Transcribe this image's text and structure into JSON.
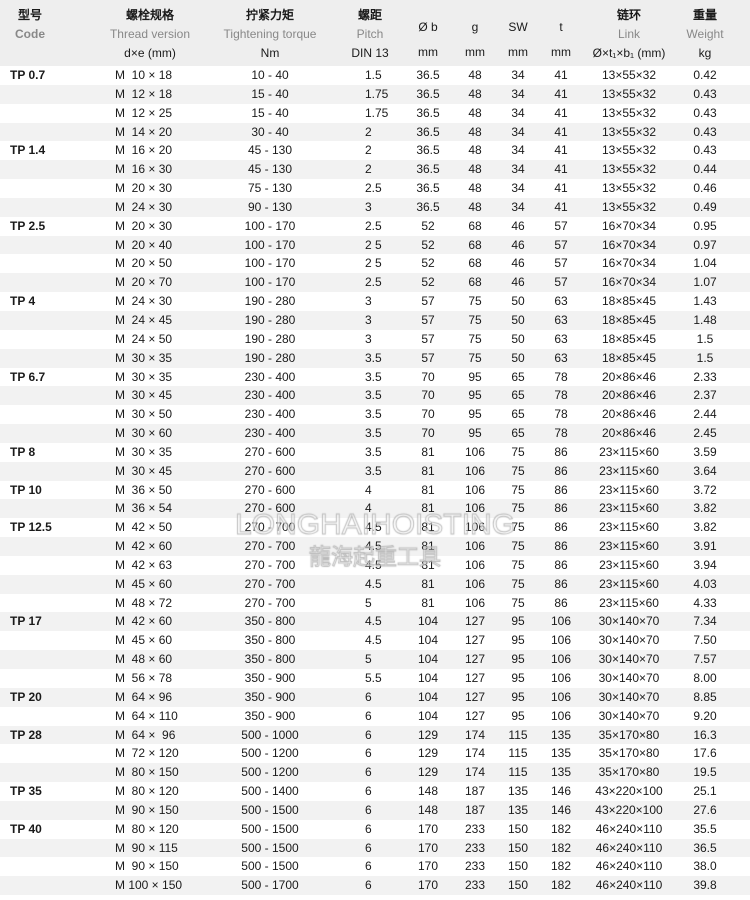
{
  "header": {
    "code": {
      "zh": "型号",
      "en": "Code"
    },
    "thread": {
      "zh": "螺栓规格",
      "en": "Thread version",
      "unit": "d×e (mm)"
    },
    "torque": {
      "zh": "拧紧力矩",
      "en": "Tightening torque",
      "unit": "Nm"
    },
    "pitch": {
      "zh": "螺距",
      "en": "Pitch",
      "unit": "DIN 13"
    },
    "ob": {
      "label": "Ø b",
      "unit": "mm"
    },
    "g": {
      "label": "g",
      "unit": "mm"
    },
    "sw": {
      "label": "SW",
      "unit": "mm"
    },
    "t": {
      "label": "t",
      "unit": "mm"
    },
    "link": {
      "zh": "链环",
      "en": "Link",
      "unit": "Ø×t₁×b₁ (mm)"
    },
    "weight": {
      "zh": "重量",
      "en": "Weight",
      "unit": "kg"
    }
  },
  "columns": [
    "code",
    "thread",
    "torque",
    "pitch",
    "ob",
    "g",
    "sw",
    "t",
    "link",
    "weight"
  ],
  "rows": [
    [
      "TP 0.7",
      "M  10 × 18",
      "10 - 40",
      "1.5",
      "36.5",
      "48",
      "34",
      "41",
      "13×55×32",
      "0.42"
    ],
    [
      "",
      "M  12 × 18",
      "15 - 40",
      "1.75",
      "36.5",
      "48",
      "34",
      "41",
      "13×55×32",
      "0.43"
    ],
    [
      "",
      "M  12 × 25",
      "15 - 40",
      "1.75",
      "36.5",
      "48",
      "34",
      "41",
      "13×55×32",
      "0.43"
    ],
    [
      "",
      "M  14 × 20",
      "30 - 40",
      "2",
      "36.5",
      "48",
      "34",
      "41",
      "13×55×32",
      "0.43"
    ],
    [
      "TP 1.4",
      "M  16 × 20",
      "45 - 130",
      "2",
      "36.5",
      "48",
      "34",
      "41",
      "13×55×32",
      "0.43"
    ],
    [
      "",
      "M  16 × 30",
      "45 - 130",
      "2",
      "36.5",
      "48",
      "34",
      "41",
      "13×55×32",
      "0.44"
    ],
    [
      "",
      "M  20 × 30",
      "75 - 130",
      "2.5",
      "36.5",
      "48",
      "34",
      "41",
      "13×55×32",
      "0.46"
    ],
    [
      "",
      "M  24 × 30",
      "90 - 130",
      "3",
      "36.5",
      "48",
      "34",
      "41",
      "13×55×32",
      "0.49"
    ],
    [
      "TP 2.5",
      "M  20 × 30",
      "100 - 170",
      "2.5",
      "52",
      "68",
      "46",
      "57",
      "16×70×34",
      "0.95"
    ],
    [
      "",
      "M  20 × 40",
      "100 - 170",
      "2 5",
      "52",
      "68",
      "46",
      "57",
      "16×70×34",
      "0.97"
    ],
    [
      "",
      "M  20 × 50",
      "100 - 170",
      "2 5",
      "52",
      "68",
      "46",
      "57",
      "16×70×34",
      "1.04"
    ],
    [
      "",
      "M  20 × 70",
      "100 - 170",
      "2.5",
      "52",
      "68",
      "46",
      "57",
      "16×70×34",
      "1.07"
    ],
    [
      "TP 4",
      "M  24 × 30",
      "190 - 280",
      "3",
      "57",
      "75",
      "50",
      "63",
      "18×85×45",
      "1.43"
    ],
    [
      "",
      "M  24 × 45",
      "190 - 280",
      "3",
      "57",
      "75",
      "50",
      "63",
      "18×85×45",
      "1.48"
    ],
    [
      "",
      "M  24 × 50",
      "190 - 280",
      "3",
      "57",
      "75",
      "50",
      "63",
      "18×85×45",
      "1.5"
    ],
    [
      "",
      "M  30 × 35",
      "190 - 280",
      "3.5",
      "57",
      "75",
      "50",
      "63",
      "18×85×45",
      "1.5"
    ],
    [
      "TP 6.7",
      "M  30 × 35",
      "230 - 400",
      "3.5",
      "70",
      "95",
      "65",
      "78",
      "20×86×46",
      "2.33"
    ],
    [
      "",
      "M  30 × 45",
      "230 - 400",
      "3.5",
      "70",
      "95",
      "65",
      "78",
      "20×86×46",
      "2.37"
    ],
    [
      "",
      "M  30 × 50",
      "230 - 400",
      "3.5",
      "70",
      "95",
      "65",
      "78",
      "20×86×46",
      "2.44"
    ],
    [
      "",
      "M  30 × 60",
      "230 - 400",
      "3.5",
      "70",
      "95",
      "65",
      "78",
      "20×86×46",
      "2.45"
    ],
    [
      "TP 8",
      "M  30 × 35",
      "270 - 600",
      "3.5",
      "81",
      "106",
      "75",
      "86",
      "23×115×60",
      "3.59"
    ],
    [
      "",
      "M  30 × 45",
      "270 - 600",
      "3.5",
      "81",
      "106",
      "75",
      "86",
      "23×115×60",
      "3.64"
    ],
    [
      "TP 10",
      "M  36 × 50",
      "270 - 600",
      "4",
      "81",
      "106",
      "75",
      "86",
      "23×115×60",
      "3.72"
    ],
    [
      "",
      "M  36 × 54",
      "270 - 600",
      "4",
      "81",
      "106",
      "75",
      "86",
      "23×115×60",
      "3.82"
    ],
    [
      "TP 12.5",
      "M  42 × 50",
      "270 - 700",
      "4.5",
      "81",
      "106",
      "75",
      "86",
      "23×115×60",
      "3.82"
    ],
    [
      "",
      "M  42 × 60",
      "270 - 700",
      "4.5",
      "81",
      "106",
      "75",
      "86",
      "23×115×60",
      "3.91"
    ],
    [
      "",
      "M  42 × 63",
      "270 - 700",
      "4.5",
      "81",
      "106",
      "75",
      "86",
      "23×115×60",
      "3.94"
    ],
    [
      "",
      "M  45 × 60",
      "270 - 700",
      "4.5",
      "81",
      "106",
      "75",
      "86",
      "23×115×60",
      "4.03"
    ],
    [
      "",
      "M  48 × 72",
      "270 - 700",
      "5",
      "81",
      "106",
      "75",
      "86",
      "23×115×60",
      "4.33"
    ],
    [
      "TP 17",
      "M  42 × 60",
      "350 - 800",
      "4.5",
      "104",
      "127",
      "95",
      "106",
      "30×140×70",
      "7.34"
    ],
    [
      "",
      "M  45 × 60",
      "350 - 800",
      "4.5",
      "104",
      "127",
      "95",
      "106",
      "30×140×70",
      "7.50"
    ],
    [
      "",
      "M  48 × 60",
      "350 - 800",
      "5",
      "104",
      "127",
      "95",
      "106",
      "30×140×70",
      "7.57"
    ],
    [
      "",
      "M  56 × 78",
      "350 - 900",
      "5.5",
      "104",
      "127",
      "95",
      "106",
      "30×140×70",
      "8.00"
    ],
    [
      "TP 20",
      "M  64 × 96",
      "350 - 900",
      "6",
      "104",
      "127",
      "95",
      "106",
      "30×140×70",
      "8.85"
    ],
    [
      "",
      "M  64 × 110",
      "350 - 900",
      "6",
      "104",
      "127",
      "95",
      "106",
      "30×140×70",
      "9.20"
    ],
    [
      "TP 28",
      "M  64 ×  96",
      "500 - 1000",
      "6",
      "129",
      "174",
      "115",
      "135",
      "35×170×80",
      "16.3"
    ],
    [
      "",
      "M  72 × 120",
      "500 - 1200",
      "6",
      "129",
      "174",
      "115",
      "135",
      "35×170×80",
      "17.6"
    ],
    [
      "",
      "M  80 × 150",
      "500 - 1200",
      "6",
      "129",
      "174",
      "115",
      "135",
      "35×170×80",
      "19.5"
    ],
    [
      "TP 35",
      "M  80 × 120",
      "500 - 1400",
      "6",
      "148",
      "187",
      "135",
      "146",
      "43×220×100",
      "25.1"
    ],
    [
      "",
      "M  90 × 150",
      "500 - 1500",
      "6",
      "148",
      "187",
      "135",
      "146",
      "43×220×100",
      "27.6"
    ],
    [
      "TP 40",
      "M  80 × 120",
      "500 - 1500",
      "6",
      "170",
      "233",
      "150",
      "182",
      "46×240×110",
      "35.5"
    ],
    [
      "",
      "M  90 × 115",
      "500 - 1500",
      "6",
      "170",
      "233",
      "150",
      "182",
      "46×240×110",
      "36.5"
    ],
    [
      "",
      "M  90 × 150",
      "500 - 1500",
      "6",
      "170",
      "233",
      "150",
      "182",
      "46×240×110",
      "38.0"
    ],
    [
      "",
      "M 100 × 150",
      "500 - 1700",
      "6",
      "170",
      "233",
      "150",
      "182",
      "46×240×110",
      "39.8"
    ]
  ],
  "watermark": {
    "line1": "LONGHAIHOISTING",
    "line2": "龍海起重工具"
  },
  "colors": {
    "header_bg": "#eeeeee",
    "stripe_bg": "#f2f2f2",
    "english_label": "#888888"
  }
}
